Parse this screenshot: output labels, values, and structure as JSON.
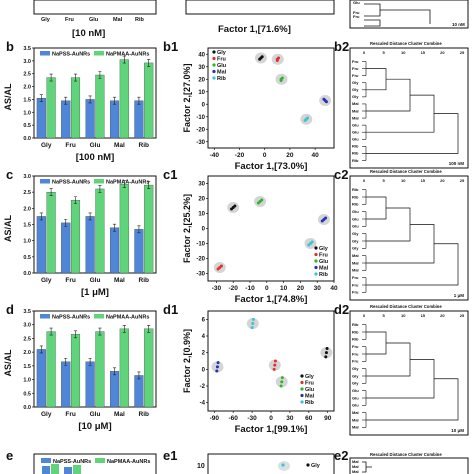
{
  "figure": {
    "rows": [
      {
        "id": "a",
        "bar": {
          "panel_label": "",
          "condition": "[10 nM]",
          "categories": [
            "Gly",
            "Fru",
            "Glu",
            "Mal",
            "Rib"
          ],
          "series": [
            {
              "name": "",
              "values": [
                null,
                null,
                null,
                null,
                null
              ]
            },
            {
              "name": "",
              "values": [
                null,
                null,
                null,
                null,
                null
              ]
            }
          ]
        },
        "pca": {
          "panel_label": "",
          "xlabel": "Factor 1,[71.6%]",
          "ylabel": "",
          "x_ticks": [],
          "y_ticks": [],
          "legend": []
        },
        "dendro": {
          "panel_label": "",
          "title": "",
          "concentration": "10 nM",
          "scale_ticks": [],
          "leaves": [
            "Glu",
            "Glu",
            "Glu",
            "Fru",
            "Fru",
            "Fru"
          ]
        }
      },
      {
        "id": "b",
        "bar": {
          "panel_label": "b",
          "condition": "[100 nM]",
          "ylabel": "AS/AL",
          "yticks": [
            "0.0",
            "0.5",
            "1.0",
            "1.5",
            "2.0",
            "2.5",
            "3.0",
            "3.5"
          ],
          "categories": [
            "Gly",
            "Fru",
            "Glu",
            "Mal",
            "Rib"
          ],
          "series": [
            {
              "name": "NaPSS-AuNRs",
              "values": [
                1.55,
                1.45,
                1.5,
                1.45,
                1.45
              ]
            },
            {
              "name": "NaPMAA-AuNRs",
              "values": [
                2.35,
                2.35,
                2.45,
                3.05,
                2.92
              ]
            }
          ]
        },
        "pca": {
          "panel_label": "b1",
          "xlabel": "Factor 1,[73.0%]",
          "ylabel": "Factor 2,[27.0%]",
          "x_ticks": [
            "-40",
            "-20",
            "0",
            "20",
            "40"
          ],
          "y_ticks": [
            "-30",
            "-20",
            "-10",
            "0",
            "10",
            "20",
            "30",
            "40"
          ],
          "legend": [
            "Gly",
            "Fru",
            "Glu",
            "Mal",
            "Rib"
          ]
        },
        "dendro": {
          "panel_label": "b2",
          "title": "Rescaled Distance Cluster Combine",
          "concentration": "100 nM",
          "scale_ticks": [
            "0",
            "5",
            "10",
            "15",
            "20",
            "25"
          ],
          "leaves": [
            "Fru",
            "Fru",
            "Fru",
            "Gly",
            "Gly",
            "Gly",
            "Mal",
            "Mal",
            "Mal",
            "Glu",
            "Glu",
            "Glu",
            "Rib",
            "Rib",
            "Rib"
          ]
        }
      },
      {
        "id": "c",
        "bar": {
          "panel_label": "c",
          "condition": "[1 μM]",
          "ylabel": "AS/AL",
          "yticks": [
            "0.0",
            "0.5",
            "1.0",
            "1.5",
            "2.0",
            "2.5",
            "3.0"
          ],
          "categories": [
            "Gly",
            "Fru",
            "Glu",
            "Mal",
            "Rib"
          ],
          "series": [
            {
              "name": "NaPSS-AuNRs",
              "values": [
                1.75,
                1.55,
                1.75,
                1.4,
                1.35
              ]
            },
            {
              "name": "NaPMAA-AuNRs",
              "values": [
                2.5,
                2.25,
                2.6,
                2.75,
                2.72
              ]
            }
          ]
        },
        "pca": {
          "panel_label": "c1",
          "xlabel": "Factor 1,[74.8%]",
          "ylabel": "Factor 2,[25.2%]",
          "x_ticks": [
            "-30",
            "-20",
            "-10",
            "0",
            "10",
            "20",
            "30",
            "40"
          ],
          "y_ticks": [
            "-30",
            "-20",
            "-10",
            "0",
            "10",
            "20",
            "30"
          ],
          "legend": [
            "Gly",
            "Fru",
            "Glu",
            "Mal",
            "Rib"
          ]
        },
        "dendro": {
          "panel_label": "c2",
          "title": "Rescaled Distance Cluster Combine",
          "concentration": "1 μM",
          "scale_ticks": [
            "0",
            "5",
            "10",
            "15",
            "20",
            "25"
          ],
          "leaves": [
            "Rib",
            "Rib",
            "Rib",
            "Glu",
            "Glu",
            "Glu",
            "Gly",
            "Gly",
            "Gly",
            "Mal",
            "Mal",
            "Mal",
            "Fru",
            "Fru",
            "Fru"
          ]
        }
      },
      {
        "id": "d",
        "bar": {
          "panel_label": "d",
          "condition": "[10 μM]",
          "ylabel": "AS/AL",
          "yticks": [
            "0.0",
            "0.5",
            "1.0",
            "1.5",
            "2.0",
            "2.5",
            "3.0",
            "3.5"
          ],
          "categories": [
            "Gly",
            "Fru",
            "Glu",
            "Mal",
            "Rib"
          ],
          "series": [
            {
              "name": "NaPSS-AuNRs",
              "values": [
                2.1,
                1.65,
                1.65,
                1.3,
                1.15
              ]
            },
            {
              "name": "NaPMAA-AuNRs",
              "values": [
                2.75,
                2.65,
                2.75,
                2.85,
                2.85
              ]
            }
          ]
        },
        "pca": {
          "panel_label": "d1",
          "xlabel": "Factor 1,[99.1%]",
          "ylabel": "Factor 2,[0.9%]",
          "x_ticks": [
            "-90",
            "-60",
            "-30",
            "0",
            "30",
            "60",
            "90"
          ],
          "y_ticks": [
            "-4",
            "-2",
            "0",
            "2",
            "4",
            "6"
          ],
          "legend": [
            "Gly",
            "Fru",
            "Glu",
            "Mal",
            "Rib"
          ]
        },
        "dendro": {
          "panel_label": "d2",
          "title": "Rescaled Distance Cluster Combine",
          "concentration": "10 μM",
          "scale_ticks": [
            "0",
            "5",
            "10",
            "15",
            "20",
            "25"
          ],
          "leaves": [
            "Rib",
            "Rib",
            "Rib",
            "Fru",
            "Fru",
            "Fru",
            "Gly",
            "Gly",
            "Gly",
            "Glu",
            "Glu",
            "Glu",
            "Mal",
            "Mal",
            "Mal"
          ]
        }
      },
      {
        "id": "e",
        "bar": {
          "panel_label": "e",
          "condition": "",
          "legend": [
            "NaPSS-AuNRs",
            "NaPMAA-AuNRs"
          ]
        },
        "pca": {
          "panel_label": "e1",
          "ylabel": "",
          "y_ticks": [
            "10"
          ],
          "legend": [
            "Gly"
          ]
        },
        "dendro": {
          "panel_label": "e2",
          "title": "Rescaled Distance Cluster Combine",
          "leaves": [
            "Mal",
            "Mal",
            "Mal"
          ]
        }
      }
    ]
  },
  "colors": {
    "napss": "#4f86d8",
    "napmaa": "#5fd47a",
    "Gly": "#111111",
    "Fru": "#e03030",
    "Glu": "#2fb52f",
    "Mal": "#2231b8",
    "Rib": "#39c5d6"
  },
  "chart_data": [
    {
      "type": "bar",
      "title": "",
      "xlabel": "[100 nM]",
      "ylabel": "AS/AL",
      "categories": [
        "Gly",
        "Fru",
        "Glu",
        "Mal",
        "Rib"
      ],
      "series": [
        {
          "name": "NaPSS-AuNRs",
          "values": [
            1.55,
            1.45,
            1.5,
            1.45,
            1.45
          ]
        },
        {
          "name": "NaPMAA-AuNRs",
          "values": [
            2.35,
            2.35,
            2.45,
            3.05,
            2.92
          ]
        }
      ],
      "ylim": [
        0,
        3.5
      ]
    },
    {
      "type": "bar",
      "title": "",
      "xlabel": "[1 μM]",
      "ylabel": "AS/AL",
      "categories": [
        "Gly",
        "Fru",
        "Glu",
        "Mal",
        "Rib"
      ],
      "series": [
        {
          "name": "NaPSS-AuNRs",
          "values": [
            1.75,
            1.55,
            1.75,
            1.4,
            1.35
          ]
        },
        {
          "name": "NaPMAA-AuNRs",
          "values": [
            2.5,
            2.25,
            2.6,
            2.75,
            2.72
          ]
        }
      ],
      "ylim": [
        0,
        3
      ]
    },
    {
      "type": "bar",
      "title": "",
      "xlabel": "[10 μM]",
      "ylabel": "AS/AL",
      "categories": [
        "Gly",
        "Fru",
        "Glu",
        "Mal",
        "Rib"
      ],
      "series": [
        {
          "name": "NaPSS-AuNRs",
          "values": [
            2.1,
            1.65,
            1.65,
            1.3,
            1.15
          ]
        },
        {
          "name": "NaPMAA-AuNRs",
          "values": [
            2.75,
            2.65,
            2.75,
            2.85,
            2.85
          ]
        }
      ],
      "ylim": [
        0,
        3.5
      ]
    },
    {
      "type": "scatter",
      "title": "",
      "xlabel": "Factor 1,[73.0%]",
      "ylabel": "Factor 2,[27.0%]",
      "xlim": [
        -45,
        55
      ],
      "ylim": [
        -35,
        45
      ],
      "series": [
        {
          "name": "Gly",
          "x": [
            -3,
            -2,
            -4
          ],
          "y": [
            37,
            38,
            36
          ]
        },
        {
          "name": "Fru",
          "x": [
            10,
            11,
            10
          ],
          "y": [
            36,
            37,
            35
          ]
        },
        {
          "name": "Glu",
          "x": [
            13,
            14,
            13
          ],
          "y": [
            20,
            21,
            19
          ]
        },
        {
          "name": "Mal",
          "x": [
            48,
            49,
            47
          ],
          "y": [
            3,
            2,
            4
          ]
        },
        {
          "name": "Rib",
          "x": [
            33,
            34,
            32
          ],
          "y": [
            -12,
            -11,
            -13
          ]
        }
      ]
    },
    {
      "type": "scatter",
      "title": "",
      "xlabel": "Factor 1,[74.8%]",
      "ylabel": "Factor 2,[25.2%]",
      "xlim": [
        -35,
        40
      ],
      "ylim": [
        -35,
        35
      ],
      "series": [
        {
          "name": "Gly",
          "x": [
            -20,
            -19,
            -21
          ],
          "y": [
            14,
            15,
            13
          ]
        },
        {
          "name": "Fru",
          "x": [
            -28,
            -27,
            -29
          ],
          "y": [
            -26,
            -25,
            -27
          ]
        },
        {
          "name": "Glu",
          "x": [
            -4,
            -3,
            -5
          ],
          "y": [
            18,
            19,
            17
          ]
        },
        {
          "name": "Mal",
          "x": [
            34,
            35,
            33
          ],
          "y": [
            6,
            7,
            5
          ]
        },
        {
          "name": "Rib",
          "x": [
            26,
            27,
            25
          ],
          "y": [
            -10,
            -9,
            -11
          ]
        }
      ]
    },
    {
      "type": "scatter",
      "title": "",
      "xlabel": "Factor 1,[99.1%]",
      "ylabel": "Factor 2,[0.9%]",
      "xlim": [
        -100,
        100
      ],
      "ylim": [
        -5,
        7
      ],
      "series": [
        {
          "name": "Gly",
          "x": [
            88,
            89,
            87
          ],
          "y": [
            2,
            2.5,
            1.5
          ]
        },
        {
          "name": "Fru",
          "x": [
            6,
            7,
            5
          ],
          "y": [
            0.5,
            1,
            0
          ]
        },
        {
          "name": "Glu",
          "x": [
            17,
            18,
            16
          ],
          "y": [
            -1.5,
            -1,
            -2
          ]
        },
        {
          "name": "Mal",
          "x": [
            -85,
            -84,
            -86
          ],
          "y": [
            0.3,
            0.8,
            -0.2
          ]
        },
        {
          "name": "Rib",
          "x": [
            -29,
            -28,
            -30
          ],
          "y": [
            5.5,
            6,
            5
          ]
        }
      ]
    }
  ]
}
